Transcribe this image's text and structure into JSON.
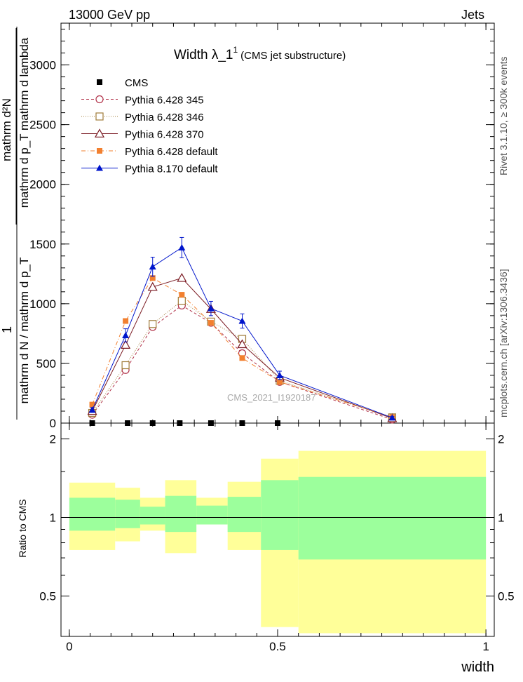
{
  "header": {
    "left": "13000 GeV pp",
    "right": "Jets"
  },
  "side_text": {
    "rivet": "Rivet 3.1.10, ≥ 300k events",
    "mcplots": "mcplots.cern.ch [arXiv:1306.3436]"
  },
  "title": {
    "main": "Width λ_1",
    "sup": "1",
    "sub": "(CMS jet substructure)"
  },
  "watermark": "CMS_2021_I1920187",
  "main_ylabel": {
    "numerator": "mathrm d²N",
    "denominator": "mathrm d p_T mathrm d lambda",
    "prefix_num": "1",
    "prefix_den": "mathrm d N / mathrm d p_T",
    "subscript": "T"
  },
  "ratio_ylabel": "Ratio to CMS",
  "xlabel": "width",
  "colors": {
    "cms": "#000000",
    "p345": "#b2334a",
    "p346": "#a07c3a",
    "p370": "#7a1a22",
    "p6def": "#f28030",
    "p8def": "#0015cc",
    "band_inner": "#9cff9c",
    "band_outer": "#ffff99"
  },
  "chart_data": {
    "type": "line",
    "xlim": [
      -0.02,
      1.02
    ],
    "ylim_main": [
      0,
      3350
    ],
    "ylim_ratio": [
      0.35,
      2.3
    ],
    "x_ticks": [
      "0",
      "0.5",
      "1"
    ],
    "y_ticks_main": [
      "0",
      "500",
      "1000",
      "1500",
      "2000",
      "2500",
      "3000"
    ],
    "y_ticks_ratio": [
      "0.5",
      "1",
      "2"
    ],
    "legend_position": "top-left",
    "series": [
      {
        "name": "CMS",
        "key": "cms",
        "style": "square",
        "x": [
          0.055,
          0.14,
          0.2,
          0.265,
          0.34,
          0.415,
          0.5
        ],
        "y": [
          0,
          0,
          0,
          0,
          0,
          0,
          0
        ]
      },
      {
        "name": "Pythia 6.428 345",
        "key": "p345",
        "style": "open-circle-dashed",
        "x": [
          0.055,
          0.135,
          0.2,
          0.27,
          0.34,
          0.415,
          0.505,
          0.775
        ],
        "y": [
          70,
          445,
          805,
          985,
          840,
          585,
          345,
          30
        ]
      },
      {
        "name": "Pythia 6.428 346",
        "key": "p346",
        "style": "open-square-dotted",
        "x": [
          0.055,
          0.135,
          0.2,
          0.27,
          0.34,
          0.415,
          0.505,
          0.775
        ],
        "y": [
          85,
          485,
          830,
          1025,
          850,
          705,
          355,
          48
        ]
      },
      {
        "name": "Pythia 6.428 370",
        "key": "p370",
        "style": "open-triangle-solid",
        "x": [
          0.055,
          0.135,
          0.2,
          0.27,
          0.34,
          0.415,
          0.505,
          0.775
        ],
        "y": [
          100,
          655,
          1140,
          1215,
          955,
          660,
          380,
          40
        ]
      },
      {
        "name": "Pythia 6.428 default",
        "key": "p6def",
        "style": "filled-square-dashdot",
        "x": [
          0.055,
          0.135,
          0.2,
          0.27,
          0.34,
          0.415,
          0.505,
          0.775
        ],
        "y": [
          155,
          855,
          1215,
          1075,
          840,
          545,
          345,
          50
        ]
      },
      {
        "name": "Pythia 8.170 default",
        "key": "p8def",
        "style": "filled-triangle-solid",
        "x": [
          0.055,
          0.135,
          0.2,
          0.27,
          0.34,
          0.415,
          0.505,
          0.775
        ],
        "y": [
          110,
          735,
          1310,
          1470,
          960,
          855,
          400,
          45
        ],
        "yerr": [
          20,
          55,
          80,
          85,
          60,
          60,
          35,
          10
        ]
      }
    ],
    "ratio_band": [
      {
        "x0": 0.0,
        "x1": 0.11,
        "inner": [
          0.89,
          1.19
        ],
        "outer": [
          0.75,
          1.36
        ]
      },
      {
        "x0": 0.11,
        "x1": 0.17,
        "inner": [
          0.91,
          1.17
        ],
        "outer": [
          0.81,
          1.3
        ]
      },
      {
        "x0": 0.17,
        "x1": 0.23,
        "inner": [
          0.94,
          1.1
        ],
        "outer": [
          0.89,
          1.19
        ]
      },
      {
        "x0": 0.23,
        "x1": 0.305,
        "inner": [
          0.88,
          1.21
        ],
        "outer": [
          0.73,
          1.39
        ]
      },
      {
        "x0": 0.305,
        "x1": 0.38,
        "inner": [
          0.94,
          1.11
        ],
        "outer": [
          0.94,
          1.19
        ]
      },
      {
        "x0": 0.38,
        "x1": 0.46,
        "inner": [
          0.88,
          1.2
        ],
        "outer": [
          0.75,
          1.37
        ]
      },
      {
        "x0": 0.46,
        "x1": 0.55,
        "inner": [
          0.75,
          1.39
        ],
        "outer": [
          0.38,
          1.68
        ]
      },
      {
        "x0": 0.55,
        "x1": 1.0,
        "inner": [
          0.69,
          1.43
        ],
        "outer": [
          0.36,
          1.8
        ]
      }
    ]
  }
}
